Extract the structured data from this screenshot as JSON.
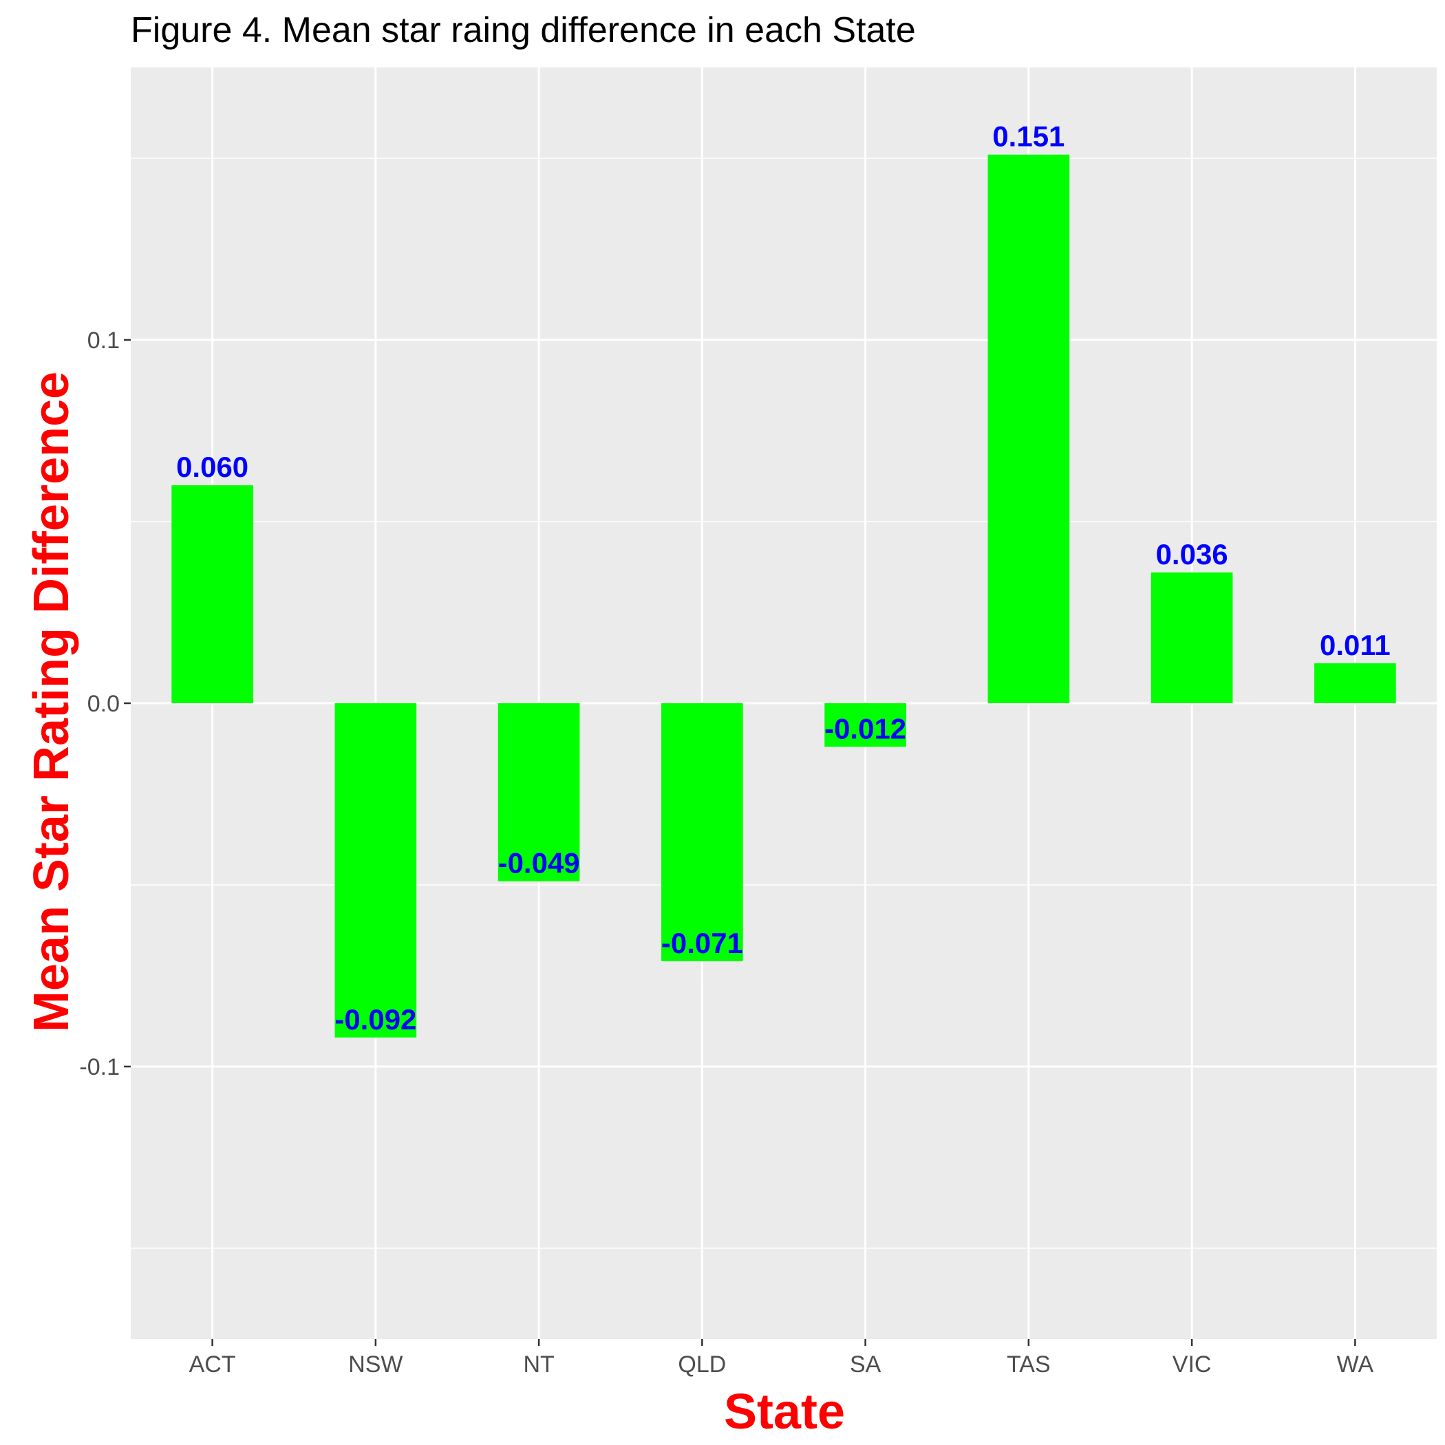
{
  "chart_data": {
    "type": "bar",
    "title": "Figure 4. Mean star raing difference in each State",
    "xlabel": "State",
    "ylabel": "Mean Star Rating Difference",
    "categories": [
      "ACT",
      "NSW",
      "NT",
      "QLD",
      "SA",
      "TAS",
      "VIC",
      "WA"
    ],
    "values": [
      0.06,
      -0.092,
      -0.049,
      -0.071,
      -0.012,
      0.151,
      0.036,
      0.011
    ],
    "value_labels": [
      "0.060",
      "-0.092",
      "-0.049",
      "-0.071",
      "-0.012",
      "0.151",
      "0.036",
      "0.011"
    ],
    "yticks": [
      {
        "value": -0.1,
        "label": "-0.1"
      },
      {
        "value": 0.0,
        "label": "0.0"
      },
      {
        "value": 0.1,
        "label": "0.1"
      }
    ],
    "ylim": [
      -0.175,
      0.175
    ],
    "grid": true,
    "colors": {
      "bar": "#00ff00",
      "data_label": "#0000ff",
      "axis_title": "#ff0000",
      "panel_bg": "#ebebeb",
      "grid": "#ffffff"
    }
  }
}
